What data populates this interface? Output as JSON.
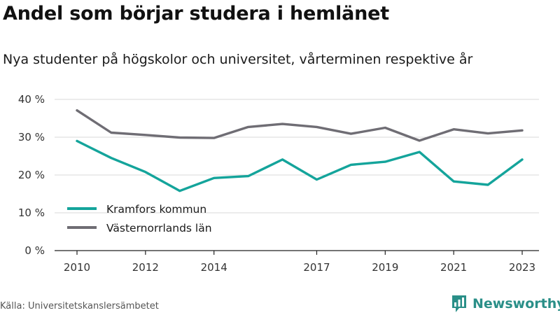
{
  "header": {
    "title": "Andel som börjar studera i hemlänet",
    "subtitle": "Nya studenter på högskolor och universitet, vårterminen respektive år"
  },
  "footer": {
    "source": "Källa: Universitetskanslersämbetet",
    "brand": "Newsworthy",
    "brand_icon": "bar-chart-logo-icon"
  },
  "colors": {
    "kramfors": "#14a49b",
    "vasternorrland": "#6f6d74",
    "axis": "#222222",
    "grid": "#d9d9d9",
    "brand": "#2a8f88"
  },
  "chart_data": {
    "type": "line",
    "x": [
      2010,
      2011,
      2012,
      2013,
      2014,
      2015,
      2016,
      2017,
      2018,
      2019,
      2020,
      2021,
      2022,
      2023
    ],
    "x_tick_labels": [
      "2010",
      "2012",
      "2014",
      "2017",
      "2019",
      "2021",
      "2023"
    ],
    "y_tick_labels": [
      "0 %",
      "10 %",
      "20 %",
      "30 %",
      "40 %"
    ],
    "y_ticks": [
      0,
      10,
      20,
      30,
      40
    ],
    "ylim": [
      0,
      40
    ],
    "grid": true,
    "legend_position": "bottom-left",
    "series": [
      {
        "name": "Kramfors kommun",
        "color_key": "kramfors",
        "values": [
          29.0,
          24.5,
          20.8,
          15.8,
          19.2,
          19.7,
          24.1,
          18.8,
          22.7,
          23.5,
          26.1,
          18.3,
          17.4,
          24.1
        ]
      },
      {
        "name": "Västernorrlands län",
        "color_key": "vasternorrland",
        "values": [
          37.1,
          31.2,
          30.6,
          29.9,
          29.8,
          32.7,
          33.5,
          32.7,
          30.9,
          32.5,
          29.1,
          32.1,
          31.0,
          31.8
        ]
      }
    ]
  }
}
